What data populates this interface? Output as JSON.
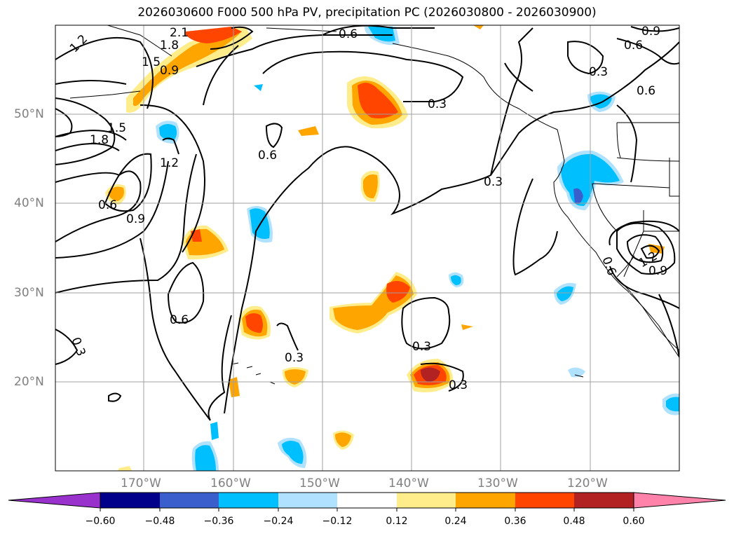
{
  "title": "2026030600 F000 500 hPa PV, precipitation PC (2026030800 - 2026030900)",
  "lat_labels": [
    "50°N",
    "40°N",
    "30°N",
    "20°N"
  ],
  "lon_labels": [
    "170°W",
    "160°W",
    "150°W",
    "140°W",
    "130°W",
    "120°W"
  ],
  "colorbar": {
    "ticks": [
      "−0.60",
      "−0.48",
      "−0.36",
      "−0.24",
      "−0.12",
      "0.12",
      "0.24",
      "0.36",
      "0.48",
      "0.60"
    ],
    "colors": [
      "#9932cc",
      "#00008b",
      "#3a5fcd",
      "#00bfff",
      "#b0e2ff",
      "#ffffff",
      "#ffec8b",
      "#ffa500",
      "#ff4500",
      "#b22222",
      "#ff82ab"
    ]
  },
  "contour_labels": [
    "1.2",
    "2.1",
    "1.8",
    "1.5",
    "0.9",
    "0.6",
    "0.9",
    "0.6",
    "0.3",
    "0.6",
    "0.3",
    "1.8",
    "1.5",
    "1.2",
    "0.6",
    "0.6",
    "0.9",
    "0.3",
    "0.6",
    "0.3",
    "0.3",
    "0.3",
    "0.3",
    "1.2",
    "0.9",
    "0.6"
  ]
}
